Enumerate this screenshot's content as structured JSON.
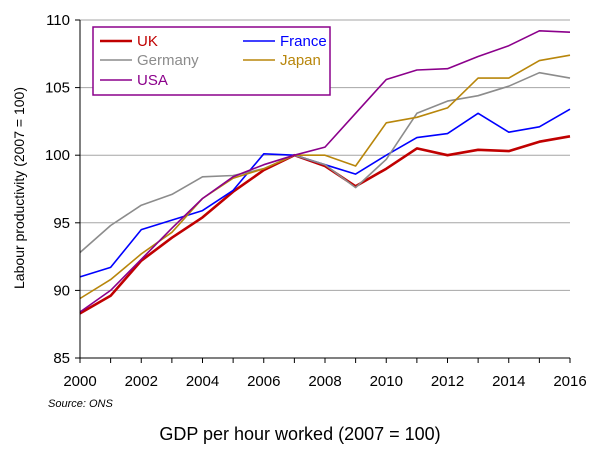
{
  "chart_data": {
    "type": "line",
    "ylabel": "Labour productivity (2007 = 100)",
    "xlabel": "",
    "xlim": [
      2000,
      2016
    ],
    "ylim": [
      85,
      110
    ],
    "x_ticks": [
      2000,
      2002,
      2004,
      2006,
      2008,
      2010,
      2012,
      2014,
      2016
    ],
    "y_ticks": [
      85,
      90,
      95,
      100,
      105,
      110
    ],
    "grid": "horizontal",
    "legend_position": "top-left",
    "x": [
      2000,
      2001,
      2002,
      2003,
      2004,
      2005,
      2006,
      2007,
      2008,
      2009,
      2010,
      2011,
      2012,
      2013,
      2014,
      2015,
      2016
    ],
    "series": [
      {
        "name": "UK",
        "color": "#c00000",
        "values": [
          88.3,
          89.6,
          92.2,
          93.9,
          95.4,
          97.3,
          98.9,
          100.0,
          99.2,
          97.7,
          99.0,
          100.5,
          100.0,
          100.4,
          100.3,
          101.0,
          101.4
        ]
      },
      {
        "name": "France",
        "color": "#0000ff",
        "values": [
          91.0,
          91.7,
          94.5,
          95.2,
          95.9,
          97.4,
          100.1,
          100.0,
          99.3,
          98.6,
          100.0,
          101.3,
          101.6,
          103.1,
          101.7,
          102.1,
          103.4
        ]
      },
      {
        "name": "Germany",
        "color": "#8c8c8c",
        "values": [
          92.8,
          94.8,
          96.3,
          97.1,
          98.4,
          98.5,
          99.0,
          100.0,
          99.3,
          97.6,
          99.7,
          103.1,
          104.0,
          104.4,
          105.1,
          106.1,
          105.7
        ]
      },
      {
        "name": "Japan",
        "color": "#b8860b",
        "values": [
          89.4,
          90.8,
          92.7,
          94.3,
          96.8,
          98.3,
          99.0,
          100.0,
          100.0,
          99.2,
          102.4,
          102.8,
          103.5,
          105.7,
          105.7,
          107.0,
          107.4
        ]
      },
      {
        "name": "USA",
        "color": "#8b008b",
        "values": [
          88.4,
          90.0,
          92.3,
          94.6,
          96.8,
          98.4,
          99.3,
          100.0,
          100.6,
          103.1,
          105.6,
          106.3,
          106.4,
          107.3,
          108.1,
          109.2,
          109.1
        ]
      }
    ]
  },
  "footer": {
    "source": "Source: ONS",
    "caption": "GDP per hour worked (2007 = 100)"
  }
}
